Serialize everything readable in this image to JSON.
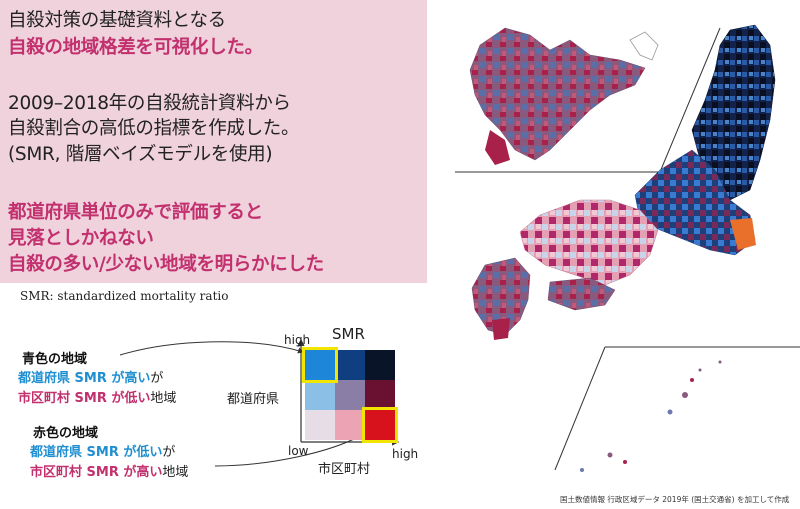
{
  "panel": {
    "line1": "自殺対策の基礎資料となる",
    "line2": "自殺の地域格差を可視化した。",
    "line3": "2009–2018年の自殺統計資料から",
    "line4": "自殺割合の高低の指標を作成した。",
    "line5": "(SMR, 階層ベイズモデルを使用)",
    "line6": "都道府県単位のみで評価すると",
    "line7": "見落としかねない",
    "line8": "自殺の多い/少ない地域を明らかにした"
  },
  "footnote": "SMR: standardized mortality ratio",
  "legend": {
    "blue_title": "青色の地域",
    "blue_l1_a": "都道府県 SMR が高い",
    "blue_l1_b": "が",
    "blue_l2_a": "市区町村 SMR が低い",
    "blue_l2_b": "地域",
    "red_title": "赤色の地域",
    "red_l1_a": "都道府県 SMR が低い",
    "red_l1_b": "が",
    "red_l2_a": "市区町村 SMR が高い",
    "red_l2_b": "地域"
  },
  "bivariate": {
    "title": "SMR",
    "y_axis": "都道府県",
    "x_axis": "市区町村",
    "high_top": "high",
    "low": "low",
    "high_right": "high",
    "cells": [
      [
        "#1e86d8",
        "#0f3f80",
        "#0a1428"
      ],
      [
        "#8cbfe6",
        "#8a7ea6",
        "#6a1030"
      ],
      [
        "#e6dde6",
        "#eca3b4",
        "#d8121c"
      ]
    ]
  },
  "credit": "国土数値情報 行政区域データ 2019年 (国土交通省) を加工して作成",
  "colors": {
    "panel_bg": "#efd2dc",
    "accent_pink": "#c2306e",
    "accent_blue": "#1f8fd1",
    "highlight": "#f2e500"
  }
}
